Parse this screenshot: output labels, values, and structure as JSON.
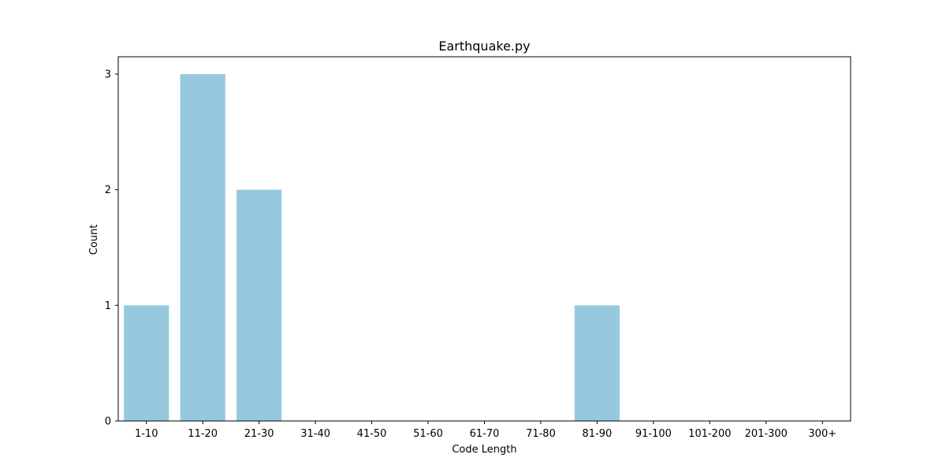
{
  "chart_data": {
    "type": "bar",
    "title": "Earthquake.py",
    "xlabel": "Code Length",
    "ylabel": "Count",
    "categories": [
      "1-10",
      "11-20",
      "21-30",
      "31-40",
      "41-50",
      "51-60",
      "61-70",
      "71-80",
      "81-90",
      "91-100",
      "101-200",
      "201-300",
      "300+"
    ],
    "values": [
      1,
      3,
      2,
      0,
      0,
      0,
      0,
      0,
      1,
      0,
      0,
      0,
      0
    ],
    "ylim": [
      0,
      3.15
    ],
    "yticks": [
      0,
      1,
      2,
      3
    ],
    "grid": false,
    "legend": "none",
    "bar_color": "#96c9de"
  }
}
